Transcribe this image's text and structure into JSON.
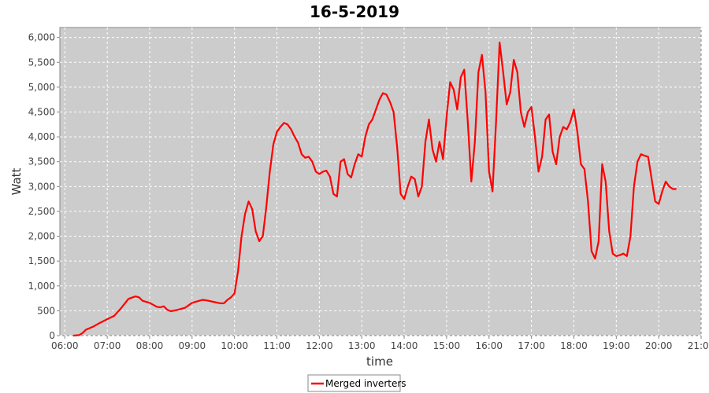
{
  "colors": {
    "plot_background": "#cccccc",
    "gridline": "#ffffff",
    "series": "#ff0000",
    "axis": "#888888"
  },
  "chart_data": {
    "type": "line",
    "title": "16-5-2019",
    "xlabel": "time",
    "ylabel": "Watt",
    "xlim": [
      "05:53",
      "21:00"
    ],
    "ylim": [
      0,
      6200
    ],
    "x_ticks": [
      "06:00",
      "07:00",
      "08:00",
      "09:00",
      "10:00",
      "11:00",
      "12:00",
      "13:00",
      "14:00",
      "15:00",
      "16:00",
      "17:00",
      "18:00",
      "19:00",
      "20:00",
      "21:00"
    ],
    "y_ticks": [
      {
        "value": 0,
        "label": "0"
      },
      {
        "value": 500,
        "label": "500"
      },
      {
        "value": 1000,
        "label": "1,000"
      },
      {
        "value": 1500,
        "label": "1,500"
      },
      {
        "value": 2000,
        "label": "2,000"
      },
      {
        "value": 2500,
        "label": "2,500"
      },
      {
        "value": 3000,
        "label": "3,000"
      },
      {
        "value": 3500,
        "label": "3,500"
      },
      {
        "value": 4000,
        "label": "4,000"
      },
      {
        "value": 4500,
        "label": "4,500"
      },
      {
        "value": 5000,
        "label": "5,000"
      },
      {
        "value": 5500,
        "label": "5,500"
      },
      {
        "value": 6000,
        "label": "6,000"
      }
    ],
    "grid": true,
    "legend": {
      "position": "bottom-center",
      "entries": [
        "Merged inverters"
      ]
    },
    "series": [
      {
        "name": "Merged inverters",
        "color": "#ff0000",
        "points": [
          [
            "06:12",
            0
          ],
          [
            "06:20",
            10
          ],
          [
            "06:25",
            50
          ],
          [
            "06:30",
            120
          ],
          [
            "06:40",
            180
          ],
          [
            "06:50",
            260
          ],
          [
            "07:00",
            330
          ],
          [
            "07:10",
            400
          ],
          [
            "07:20",
            560
          ],
          [
            "07:30",
            740
          ],
          [
            "07:40",
            790
          ],
          [
            "07:45",
            770
          ],
          [
            "07:50",
            700
          ],
          [
            "08:00",
            660
          ],
          [
            "08:10",
            580
          ],
          [
            "08:15",
            570
          ],
          [
            "08:20",
            590
          ],
          [
            "08:25",
            520
          ],
          [
            "08:30",
            490
          ],
          [
            "08:40",
            520
          ],
          [
            "08:50",
            560
          ],
          [
            "09:00",
            660
          ],
          [
            "09:10",
            700
          ],
          [
            "09:15",
            720
          ],
          [
            "09:20",
            710
          ],
          [
            "09:30",
            680
          ],
          [
            "09:40",
            650
          ],
          [
            "09:45",
            650
          ],
          [
            "09:50",
            720
          ],
          [
            "09:55",
            770
          ],
          [
            "10:00",
            850
          ],
          [
            "10:05",
            1300
          ],
          [
            "10:10",
            2000
          ],
          [
            "10:15",
            2450
          ],
          [
            "10:20",
            2700
          ],
          [
            "10:25",
            2550
          ],
          [
            "10:30",
            2100
          ],
          [
            "10:35",
            1900
          ],
          [
            "10:40",
            2000
          ],
          [
            "10:45",
            2600
          ],
          [
            "10:50",
            3300
          ],
          [
            "10:55",
            3850
          ],
          [
            "11:00",
            4100
          ],
          [
            "11:05",
            4200
          ],
          [
            "11:10",
            4280
          ],
          [
            "11:15",
            4250
          ],
          [
            "11:20",
            4150
          ],
          [
            "11:25",
            4000
          ],
          [
            "11:30",
            3880
          ],
          [
            "11:35",
            3650
          ],
          [
            "11:40",
            3580
          ],
          [
            "11:45",
            3600
          ],
          [
            "11:50",
            3500
          ],
          [
            "11:55",
            3300
          ],
          [
            "12:00",
            3250
          ],
          [
            "12:05",
            3300
          ],
          [
            "12:10",
            3320
          ],
          [
            "12:15",
            3200
          ],
          [
            "12:20",
            2850
          ],
          [
            "12:25",
            2800
          ],
          [
            "12:30",
            3500
          ],
          [
            "12:35",
            3550
          ],
          [
            "12:40",
            3250
          ],
          [
            "12:45",
            3180
          ],
          [
            "12:50",
            3450
          ],
          [
            "12:55",
            3650
          ],
          [
            "13:00",
            3600
          ],
          [
            "13:05",
            4000
          ],
          [
            "13:10",
            4250
          ],
          [
            "13:15",
            4350
          ],
          [
            "13:20",
            4550
          ],
          [
            "13:25",
            4750
          ],
          [
            "13:30",
            4880
          ],
          [
            "13:35",
            4850
          ],
          [
            "13:40",
            4700
          ],
          [
            "13:45",
            4500
          ],
          [
            "13:50",
            3800
          ],
          [
            "13:55",
            2850
          ],
          [
            "14:00",
            2750
          ],
          [
            "14:05",
            3000
          ],
          [
            "14:10",
            3200
          ],
          [
            "14:15",
            3150
          ],
          [
            "14:20",
            2800
          ],
          [
            "14:25",
            3000
          ],
          [
            "14:30",
            3900
          ],
          [
            "14:35",
            4350
          ],
          [
            "14:40",
            3750
          ],
          [
            "14:45",
            3500
          ],
          [
            "14:50",
            3900
          ],
          [
            "14:55",
            3550
          ],
          [
            "15:00",
            4400
          ],
          [
            "15:05",
            5100
          ],
          [
            "15:10",
            4950
          ],
          [
            "15:15",
            4550
          ],
          [
            "15:20",
            5200
          ],
          [
            "15:25",
            5350
          ],
          [
            "15:30",
            4300
          ],
          [
            "15:35",
            3100
          ],
          [
            "15:40",
            3900
          ],
          [
            "15:45",
            5300
          ],
          [
            "15:50",
            5650
          ],
          [
            "15:55",
            4900
          ],
          [
            "16:00",
            3300
          ],
          [
            "16:05",
            2900
          ],
          [
            "16:10",
            4300
          ],
          [
            "16:15",
            5900
          ],
          [
            "16:20",
            5300
          ],
          [
            "16:25",
            4650
          ],
          [
            "16:30",
            4900
          ],
          [
            "16:35",
            5550
          ],
          [
            "16:40",
            5300
          ],
          [
            "16:45",
            4500
          ],
          [
            "16:50",
            4200
          ],
          [
            "16:55",
            4500
          ],
          [
            "17:00",
            4600
          ],
          [
            "17:05",
            4000
          ],
          [
            "17:10",
            3300
          ],
          [
            "17:15",
            3600
          ],
          [
            "17:20",
            4350
          ],
          [
            "17:25",
            4450
          ],
          [
            "17:30",
            3700
          ],
          [
            "17:35",
            3450
          ],
          [
            "17:40",
            4000
          ],
          [
            "17:45",
            4200
          ],
          [
            "17:50",
            4150
          ],
          [
            "17:55",
            4300
          ],
          [
            "18:00",
            4550
          ],
          [
            "18:05",
            4100
          ],
          [
            "18:10",
            3450
          ],
          [
            "18:15",
            3350
          ],
          [
            "18:20",
            2700
          ],
          [
            "18:25",
            1700
          ],
          [
            "18:30",
            1550
          ],
          [
            "18:35",
            1900
          ],
          [
            "18:40",
            3450
          ],
          [
            "18:45",
            3100
          ],
          [
            "18:50",
            2100
          ],
          [
            "18:55",
            1650
          ],
          [
            "19:00",
            1600
          ],
          [
            "19:05",
            1620
          ],
          [
            "19:10",
            1650
          ],
          [
            "19:15",
            1600
          ],
          [
            "19:20",
            2000
          ],
          [
            "19:25",
            3000
          ],
          [
            "19:30",
            3500
          ],
          [
            "19:35",
            3650
          ],
          [
            "19:40",
            3620
          ],
          [
            "19:45",
            3600
          ],
          [
            "19:50",
            3150
          ],
          [
            "19:55",
            2700
          ],
          [
            "20:00",
            2650
          ],
          [
            "20:05",
            2900
          ],
          [
            "20:10",
            3100
          ],
          [
            "20:15",
            3000
          ],
          [
            "20:20",
            2950
          ],
          [
            "20:25",
            2950
          ]
        ]
      }
    ]
  }
}
